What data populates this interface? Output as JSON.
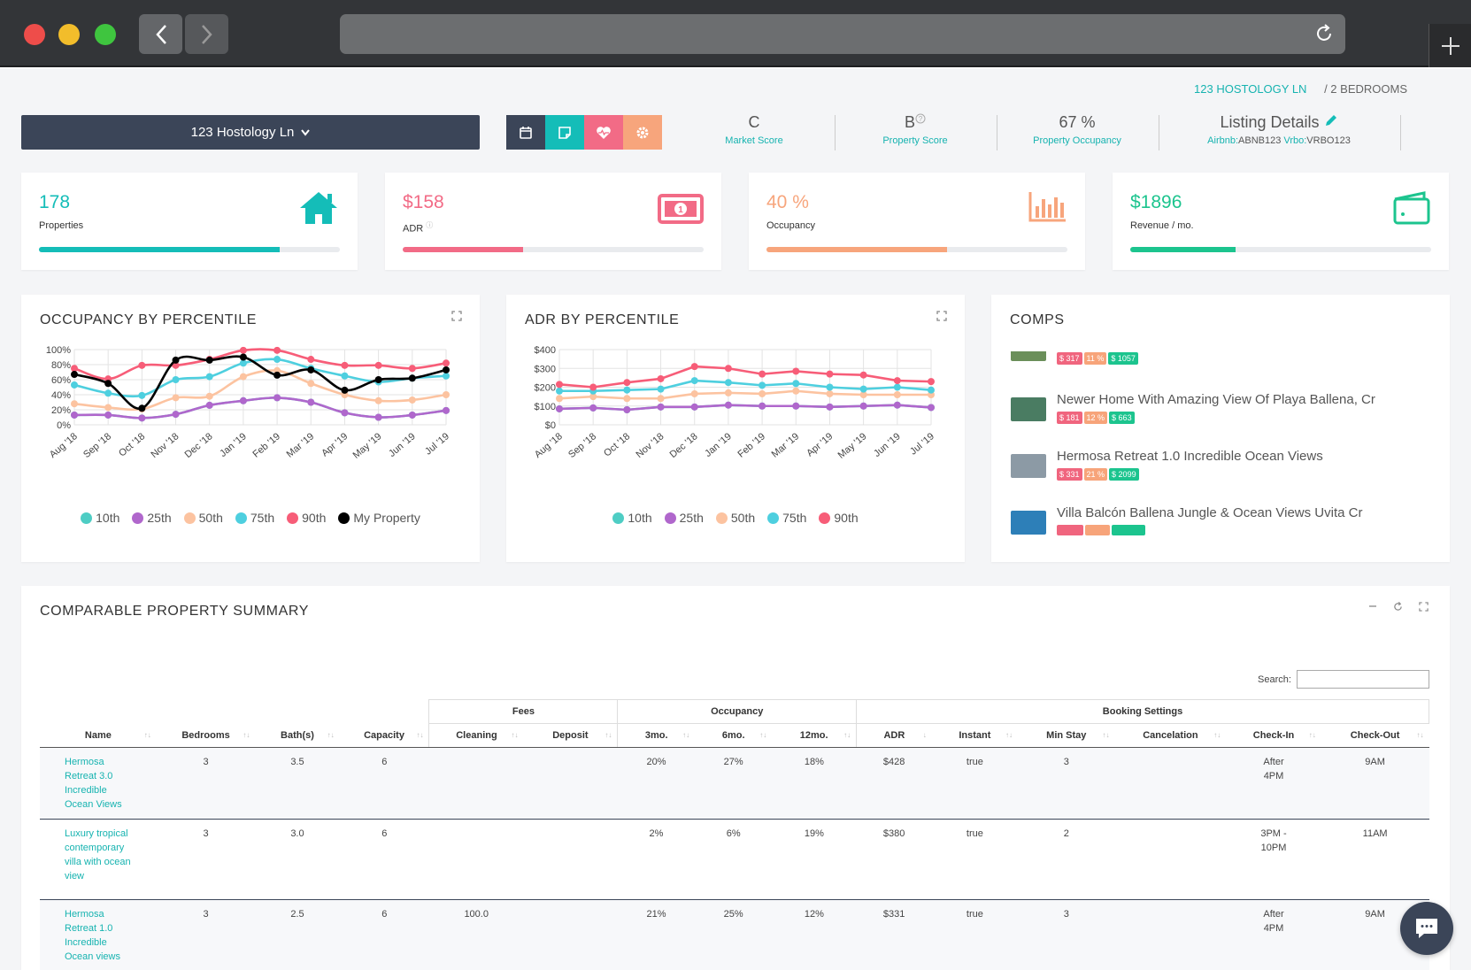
{
  "breadcrumb": {
    "address": "123 HOSTOLOGY LN",
    "bedrooms": "/ 2 BEDROOMS"
  },
  "property_select": {
    "label": "123 Hostology Ln"
  },
  "scores": {
    "market": {
      "value": "C",
      "label": "Market Score"
    },
    "property": {
      "value": "B",
      "label": "Property Score"
    },
    "occupancy": {
      "value": "67 %",
      "label": "Property Occupancy"
    },
    "listing": {
      "title": "Listing Details",
      "airbnb_label": "Airbnb:",
      "airbnb_id": "ABNB123",
      "vrbo_label": "Vrbo:",
      "vrbo_id": "VRBO123"
    }
  },
  "stats": [
    {
      "value": "178",
      "label": "Properties",
      "color": "#14bdb8",
      "icon": "house-icon",
      "progress": 0.8
    },
    {
      "value": "$158",
      "label": "ADR",
      "color": "#f26b86",
      "icon": "money-icon",
      "progress": 0.4
    },
    {
      "value": "40 %",
      "label": "Occupancy",
      "color": "#f7a57c",
      "icon": "bar-chart-icon",
      "progress": 0.6
    },
    {
      "value": "$1896",
      "label": "Revenue / mo.",
      "color": "#1cc48e",
      "icon": "wallet-icon",
      "progress": 0.35
    }
  ],
  "panels": {
    "occupancy_title": "OCCUPANCY BY PERCENTILE",
    "adr_title": "ADR BY PERCENTILE",
    "comps_title": "COMPS",
    "table_title": "COMPARABLE PROPERTY SUMMARY"
  },
  "chart_data": [
    {
      "type": "line",
      "title": "OCCUPANCY BY PERCENTILE",
      "categories": [
        "Aug '18",
        "Sep '18",
        "Oct '18",
        "Nov '18",
        "Dec '18",
        "Jan '19",
        "Feb '19",
        "Mar '19",
        "Apr '19",
        "May '19",
        "Jun '19",
        "Jul '19"
      ],
      "y_ticks": [
        "0%",
        "20%",
        "40%",
        "60%",
        "80%",
        "100%"
      ],
      "ylim": [
        0,
        100
      ],
      "series": [
        {
          "name": "10th",
          "color": "#4ecdc4",
          "values": [
            13,
            13,
            9,
            14,
            26,
            32,
            36,
            30,
            16,
            10,
            13,
            19
          ]
        },
        {
          "name": "25th",
          "color": "#b067cc",
          "values": [
            13,
            13,
            9,
            14,
            26,
            32,
            36,
            30,
            16,
            10,
            13,
            19
          ]
        },
        {
          "name": "50th",
          "color": "#fcc3a0",
          "values": [
            28,
            23,
            21,
            36,
            38,
            64,
            72,
            55,
            40,
            32,
            33,
            40
          ]
        },
        {
          "name": "75th",
          "color": "#4ecfdf",
          "values": [
            53,
            42,
            39,
            60,
            64,
            82,
            87,
            75,
            65,
            57,
            62,
            65
          ]
        },
        {
          "name": "90th",
          "color": "#f75d78",
          "values": [
            75,
            61,
            79,
            79,
            87,
            99,
            99,
            87,
            79,
            79,
            75,
            82
          ]
        },
        {
          "name": "My Property",
          "color": "#000000",
          "values": [
            67,
            55,
            22,
            86,
            86,
            90,
            66,
            73,
            46,
            60,
            62,
            73
          ]
        }
      ],
      "legend": "bottom"
    },
    {
      "type": "line",
      "title": "ADR BY PERCENTILE",
      "categories": [
        "Aug '18",
        "Sep '18",
        "Oct '18",
        "Nov '18",
        "Dec '18",
        "Jan '19",
        "Feb '19",
        "Mar '19",
        "Apr '19",
        "May '19",
        "Jun '19",
        "Jul '19"
      ],
      "y_ticks": [
        "$0",
        "$100",
        "$200",
        "$300",
        "$400"
      ],
      "ylim": [
        0,
        400
      ],
      "series": [
        {
          "name": "10th",
          "color": "#4ecdc4",
          "values": [
            85,
            90,
            80,
            95,
            95,
            105,
            100,
            100,
            95,
            100,
            105,
            92
          ]
        },
        {
          "name": "25th",
          "color": "#b067cc",
          "values": [
            85,
            90,
            80,
            95,
            95,
            105,
            100,
            100,
            95,
            100,
            105,
            92
          ]
        },
        {
          "name": "50th",
          "color": "#fcc3a0",
          "values": [
            140,
            150,
            140,
            140,
            165,
            170,
            165,
            180,
            165,
            160,
            160,
            160
          ]
        },
        {
          "name": "75th",
          "color": "#4ecfdf",
          "values": [
            180,
            180,
            185,
            190,
            235,
            225,
            210,
            220,
            200,
            190,
            200,
            185
          ]
        },
        {
          "name": "90th",
          "color": "#f75d78",
          "values": [
            215,
            200,
            225,
            245,
            310,
            300,
            270,
            285,
            270,
            265,
            235,
            230
          ]
        }
      ],
      "legend": "bottom"
    }
  ],
  "comps": [
    {
      "title": "",
      "badges": [
        "$ 317",
        "11 %",
        "$ 1057"
      ],
      "thumb": "#6b8f5a"
    },
    {
      "title": "Newer Home With Amazing View Of Playa Ballena, Cr",
      "badges": [
        "$ 181",
        "12 %",
        "$ 663"
      ],
      "thumb": "#4a7c62"
    },
    {
      "title": "Hermosa Retreat 1.0 Incredible Ocean Views",
      "badges": [
        "$ 331",
        "21 %",
        "$ 2099"
      ],
      "thumb": "#8c9aa5"
    },
    {
      "title": "Villa Balcón Ballena Jungle & Ocean Views Uvita Cr",
      "badges": [
        "",
        "",
        ""
      ],
      "thumb": "#2d7fb8"
    }
  ],
  "table": {
    "search_label": "Search:",
    "groups": {
      "fees": "Fees",
      "occupancy": "Occupancy",
      "booking": "Booking Settings"
    },
    "columns": [
      "Name",
      "Bedrooms",
      "Bath(s)",
      "Capacity",
      "Cleaning",
      "Deposit",
      "3mo.",
      "6mo.",
      "12mo.",
      "ADR",
      "Instant",
      "Min Stay",
      "Cancelation",
      "Check-In",
      "Check-Out"
    ],
    "rows": [
      {
        "name": "Hermosa Retreat 3.0 Incredible Ocean Views",
        "bedrooms": "3",
        "baths": "3.5",
        "capacity": "6",
        "cleaning": "",
        "deposit": "",
        "occ3": "20%",
        "occ6": "27%",
        "occ12": "18%",
        "adr": "$428",
        "instant": "true",
        "min_stay": "3",
        "cancel": "",
        "checkin": "After 4PM",
        "checkout": "9AM"
      },
      {
        "name": "Luxury tropical contemporary villa with ocean view",
        "bedrooms": "3",
        "baths": "3.0",
        "capacity": "6",
        "cleaning": "",
        "deposit": "",
        "occ3": "2%",
        "occ6": "6%",
        "occ12": "19%",
        "adr": "$380",
        "instant": "true",
        "min_stay": "2",
        "cancel": "",
        "checkin": "3PM - 10PM",
        "checkout": "11AM"
      },
      {
        "name": "Hermosa Retreat 1.0 Incredible Ocean views",
        "bedrooms": "3",
        "baths": "2.5",
        "capacity": "6",
        "cleaning": "100.0",
        "deposit": "",
        "occ3": "21%",
        "occ6": "25%",
        "occ12": "12%",
        "adr": "$331",
        "instant": "true",
        "min_stay": "3",
        "cancel": "",
        "checkin": "After 4PM",
        "checkout": "9AM"
      }
    ]
  }
}
